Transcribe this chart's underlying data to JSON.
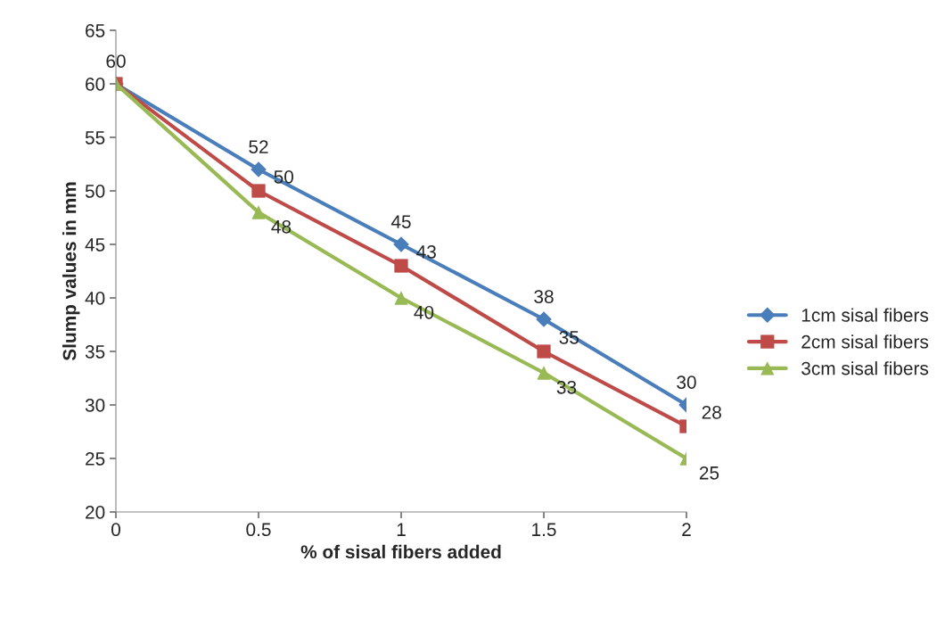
{
  "chart_data": {
    "type": "line",
    "xlabel": "% of sisal fibers added",
    "ylabel": "Slump values in mm",
    "categories": [
      "0",
      "0.5",
      "1",
      "1.5",
      "2"
    ],
    "series": [
      {
        "name": "1cm sisal fibers",
        "color": "#4a7ebb",
        "marker": "diamond",
        "values": [
          60,
          52,
          45,
          38,
          30
        ]
      },
      {
        "name": "2cm sisal fibers",
        "color": "#be4b48",
        "marker": "square",
        "values": [
          60,
          50,
          43,
          35,
          28
        ],
        "value_labels": [
          null,
          "50",
          "43",
          "35",
          "28"
        ]
      },
      {
        "name": "3cm sisal fibers",
        "color": "#98b954",
        "marker": "triangle",
        "values": [
          60,
          48,
          40,
          33,
          25
        ],
        "value_labels": [
          null,
          "48",
          "40",
          "33",
          "25"
        ]
      }
    ],
    "ylim": [
      20,
      65
    ],
    "yticks": [
      20,
      25,
      30,
      35,
      40,
      45,
      50,
      55,
      60,
      65
    ],
    "data_labels": true,
    "grid": false,
    "legend": "right"
  }
}
